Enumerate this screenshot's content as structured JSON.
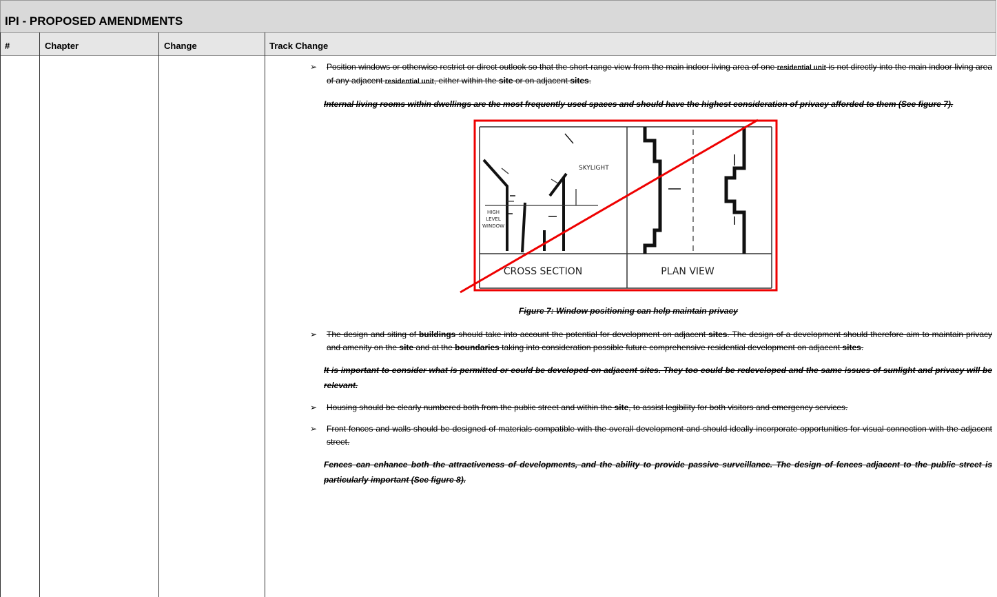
{
  "header": {
    "title": "IPI - PROPOSED AMENDMENTS"
  },
  "table": {
    "columns": [
      "#",
      "Chapter",
      "Change",
      "Track Change"
    ],
    "bullet": "➢",
    "rows": [
      {
        "track_change": [
          {
            "kind": "bullet",
            "runs": [
              {
                "text": "Position windows or otherwise restrict or direct outlook so that the short-range view from the main indoor living area of one ",
                "bold": false
              },
              {
                "text": "residential unit",
                "bold": true
              },
              {
                "text": " is not directly into the main indoor living area of any adjacent ",
                "bold": false
              },
              {
                "text": "residential unit",
                "bold": true
              },
              {
                "text": ", either within the ",
                "bold": false
              },
              {
                "text": "site",
                "bold": true
              },
              {
                "text": " or on adjacent ",
                "bold": false
              },
              {
                "text": "sites",
                "bold": true
              },
              {
                "text": ".",
                "bold": false
              }
            ]
          },
          {
            "kind": "note",
            "runs": [
              {
                "text": "Internal living rooms within dwellings are the most frequently used spaces and should have the highest consideration of privacy afforded to them (See figure 7).",
                "bold": false
              }
            ]
          },
          {
            "kind": "figure",
            "skylight": "SKYLIGHT",
            "window_label": [
              "HIGH",
              "LEVEL",
              "WINDOW"
            ],
            "left_label": "CROSS SECTION",
            "right_label": "PLAN VIEW",
            "caption": "Figure 7: Window positioning can help maintain privacy"
          },
          {
            "kind": "bullet",
            "runs": [
              {
                "text": "The design and siting of ",
                "bold": false
              },
              {
                "text": "buildings",
                "bold": true
              },
              {
                "text": " should take into account the potential for development on adjacent ",
                "bold": false
              },
              {
                "text": "sites",
                "bold": true
              },
              {
                "text": ". The design of a development should therefore aim to maintain privacy and amenity on the ",
                "bold": false
              },
              {
                "text": "site",
                "bold": true
              },
              {
                "text": " and at the ",
                "bold": false
              },
              {
                "text": "boundaries",
                "bold": true
              },
              {
                "text": " taking into consideration possible future comprehensive residential development on adjacent ",
                "bold": false
              },
              {
                "text": "sites",
                "bold": true
              },
              {
                "text": ".",
                "bold": false
              }
            ]
          },
          {
            "kind": "note",
            "runs": [
              {
                "text": "It is important to consider what is permitted or could be developed on adjacent ",
                "bold": false
              },
              {
                "text": "sites",
                "bold": true
              },
              {
                "text": ". They too could be redeveloped and the same issues of sunlight and privacy will be relevant.",
                "bold": false
              }
            ]
          },
          {
            "kind": "bullet",
            "runs": [
              {
                "text": "Housing should be clearly numbered both from the public street and within the ",
                "bold": false
              },
              {
                "text": "site",
                "bold": true
              },
              {
                "text": ", to assist legibility for both visitors and emergency services.",
                "bold": false
              }
            ]
          },
          {
            "kind": "bullet",
            "runs": [
              {
                "text": "Front fences and walls should be designed of materials compatible with the overall development and should ideally incorporate opportunities for visual connection with the adjacent street.",
                "bold": false
              }
            ]
          },
          {
            "kind": "note",
            "runs": [
              {
                "text": "Fences can enhance both the attractiveness of developments, and the ability to provide passive surveillance. The design of fences adjacent to the public street is particularly important (See figure 8).",
                "bold": false
              }
            ]
          }
        ]
      }
    ]
  }
}
